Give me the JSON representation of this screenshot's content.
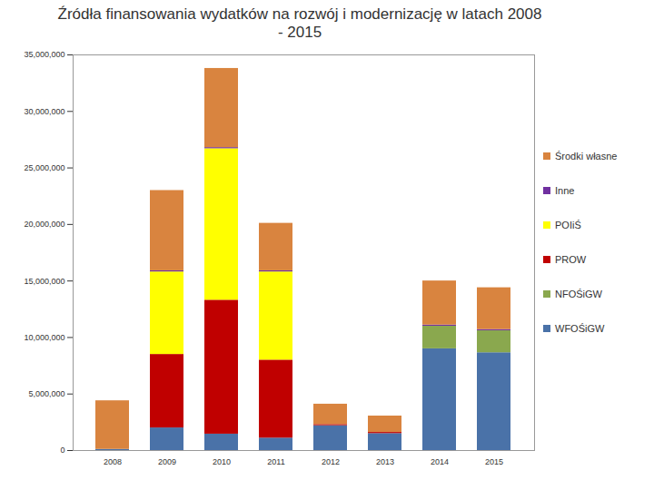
{
  "chart_data": {
    "type": "bar",
    "stacked": true,
    "title": "Źródła finansowania wydatków na rozwój i modernizację w latach 2008 - 2015",
    "categories": [
      "2008",
      "2009",
      "2010",
      "2011",
      "2012",
      "2013",
      "2014",
      "2015"
    ],
    "series": [
      {
        "name": "WFOŚiGW",
        "color": "#4a72a8",
        "values": [
          100000,
          2000000,
          1450000,
          1100000,
          2200000,
          1500000,
          9000000,
          8650000
        ]
      },
      {
        "name": "NFOŚiGW",
        "color": "#8aa84e",
        "values": [
          0,
          0,
          0,
          0,
          0,
          0,
          2000000,
          1950000
        ]
      },
      {
        "name": "PROW",
        "color": "#c00000",
        "values": [
          0,
          6500000,
          11850000,
          6900000,
          100000,
          100000,
          0,
          0
        ]
      },
      {
        "name": "POIiŚ",
        "color": "#ffff00",
        "values": [
          0,
          7300000,
          13400000,
          7800000,
          0,
          0,
          0,
          0
        ]
      },
      {
        "name": "Inne",
        "color": "#7030a0",
        "values": [
          0,
          100000,
          100000,
          100000,
          0,
          0,
          100000,
          100000
        ]
      },
      {
        "name": "Środki własne",
        "color": "#d9843f",
        "values": [
          4300000,
          7100000,
          7000000,
          4200000,
          1800000,
          1450000,
          3900000,
          3700000
        ]
      }
    ],
    "ylim": [
      0,
      35000000
    ],
    "yticks": [
      0,
      {
        "value": 5000000,
        "label": "5,000,000"
      },
      {
        "value": 10000000,
        "label": "10,000,000"
      },
      {
        "value": 15000000,
        "label": "15,000,000"
      },
      {
        "value": 20000000,
        "label": "20,000,000"
      },
      {
        "value": 25000000,
        "label": "25,000,000"
      },
      {
        "value": 30000000,
        "label": "30,000,000"
      },
      {
        "value": 35000000,
        "label": "35,000,000"
      }
    ],
    "grid": false,
    "legend": "right"
  }
}
